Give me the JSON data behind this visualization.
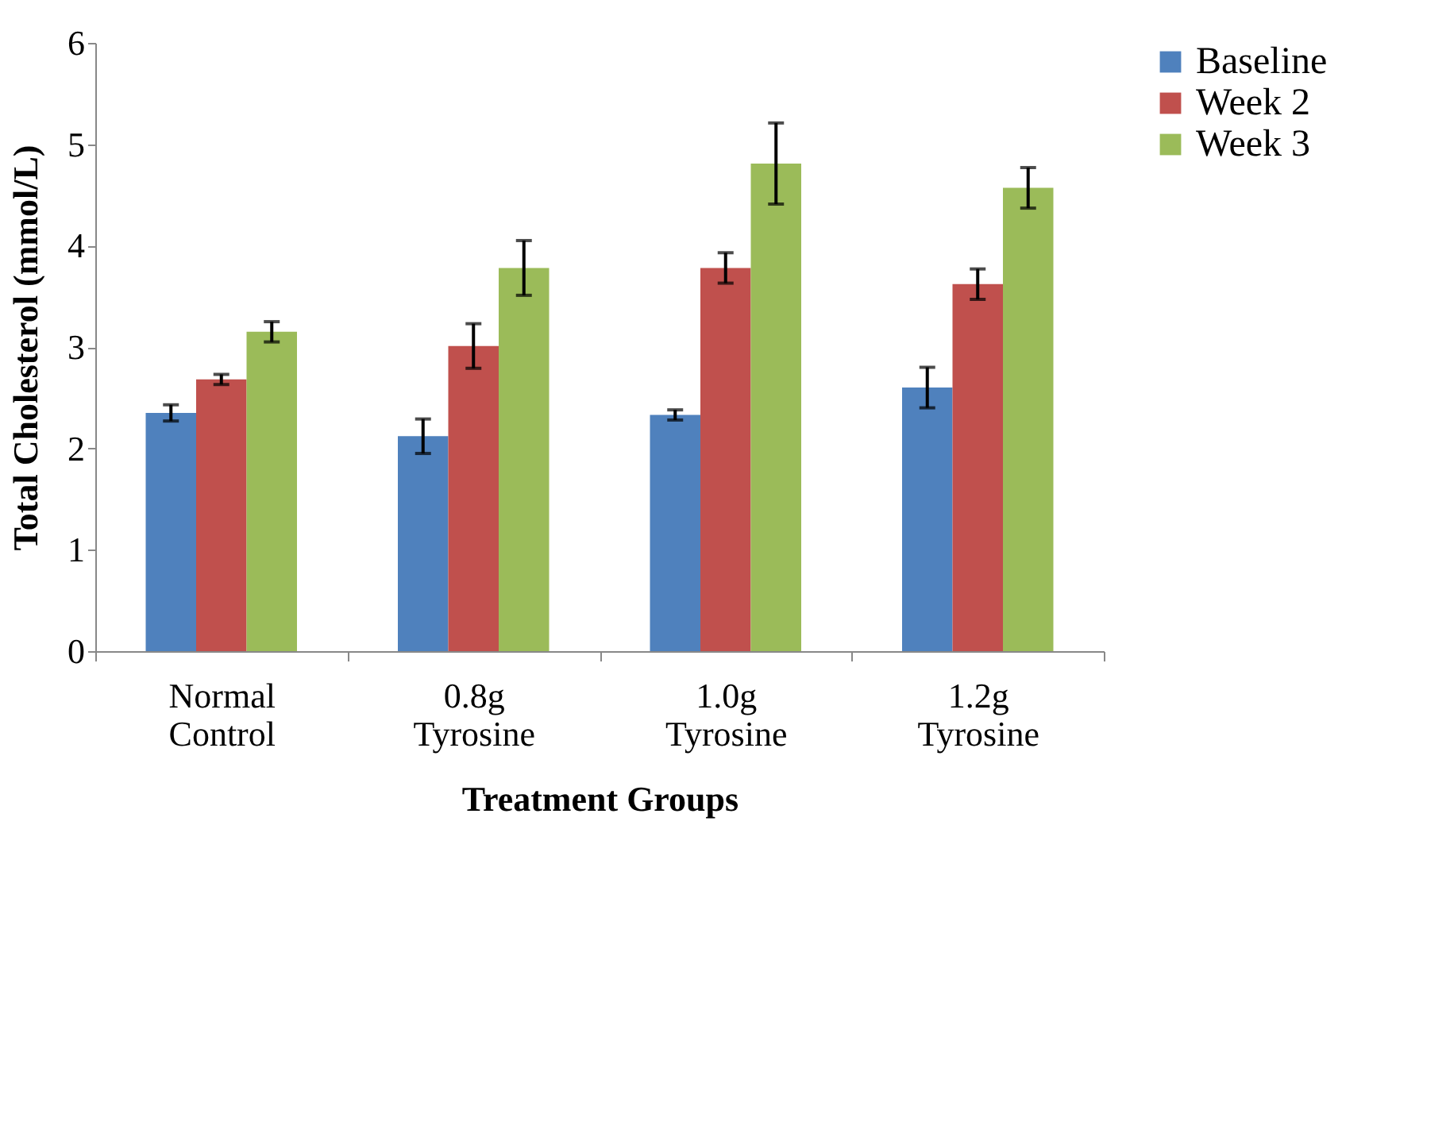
{
  "chart_data": {
    "type": "bar",
    "xlabel": "Treatment Groups",
    "ylabel": "Total Cholesterol (mmol/L)",
    "categories": [
      "Normal Control",
      "0.8g Tyrosine",
      "1.0g Tyrosine",
      "1.2g Tyrosine"
    ],
    "series": [
      {
        "name": "Baseline",
        "color": "#4f81bd",
        "values": [
          2.35,
          2.12,
          2.33,
          2.6
        ],
        "errors": [
          0.08,
          0.17,
          0.05,
          0.2
        ]
      },
      {
        "name": "Week 2",
        "color": "#c0504d",
        "values": [
          2.68,
          3.01,
          3.78,
          3.62
        ],
        "errors": [
          0.05,
          0.22,
          0.15,
          0.15
        ]
      },
      {
        "name": "Week 3",
        "color": "#9bbb59",
        "values": [
          3.15,
          3.78,
          4.81,
          4.57
        ],
        "errors": [
          0.1,
          0.27,
          0.4,
          0.2
        ]
      }
    ],
    "ylim": [
      0,
      6
    ],
    "yticks": [
      0,
      1,
      2,
      3,
      4,
      5,
      6
    ],
    "grid": false,
    "legend": "right"
  }
}
